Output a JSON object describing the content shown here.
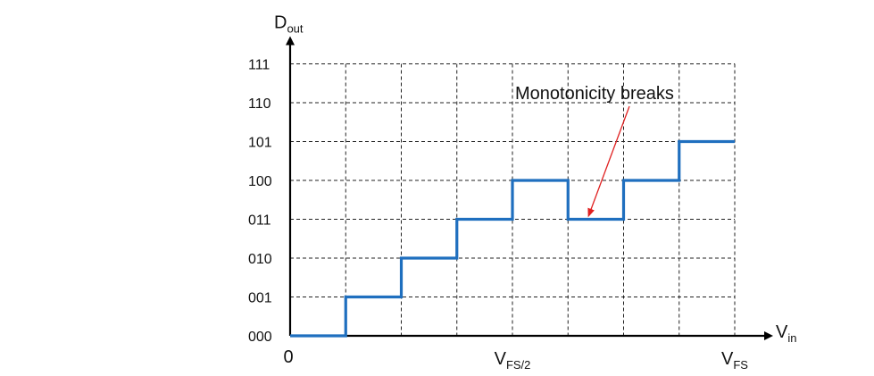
{
  "chart_data": {
    "type": "line",
    "step": true,
    "x_tick_labels": {
      "origin": "0",
      "mid": {
        "main": "V",
        "sub": "FS/2"
      },
      "end": {
        "main": "V",
        "sub": "FS"
      }
    },
    "x_axis_title": {
      "main": "V",
      "sub": "in"
    },
    "y_axis_title": {
      "main": "D",
      "sub": "out"
    },
    "y_tick_labels": [
      "000",
      "001",
      "010",
      "011",
      "100",
      "101",
      "110",
      "111"
    ],
    "series": [
      {
        "steps": [
          {
            "x_from": 0,
            "x_to": 1,
            "code": 0
          },
          {
            "x_from": 1,
            "x_to": 2,
            "code": 1
          },
          {
            "x_from": 2,
            "x_to": 3,
            "code": 2
          },
          {
            "x_from": 3,
            "x_to": 4,
            "code": 3
          },
          {
            "x_from": 4,
            "x_to": 5,
            "code": 4
          },
          {
            "x_from": 5,
            "x_to": 6,
            "code": 3
          },
          {
            "x_from": 6,
            "x_to": 7,
            "code": 4
          },
          {
            "x_from": 7,
            "x_to": 8,
            "code": 5
          }
        ]
      }
    ],
    "x_range": [
      0,
      8
    ],
    "y_range": [
      0,
      7
    ],
    "grid": true,
    "annotations": [
      {
        "text": "Monotonicity breaks",
        "points_to_step": 5
      }
    ],
    "colors": {
      "series": "#1f6fbf",
      "arrow": "#e02020",
      "axes": "#000000",
      "grid": "#222222"
    }
  }
}
